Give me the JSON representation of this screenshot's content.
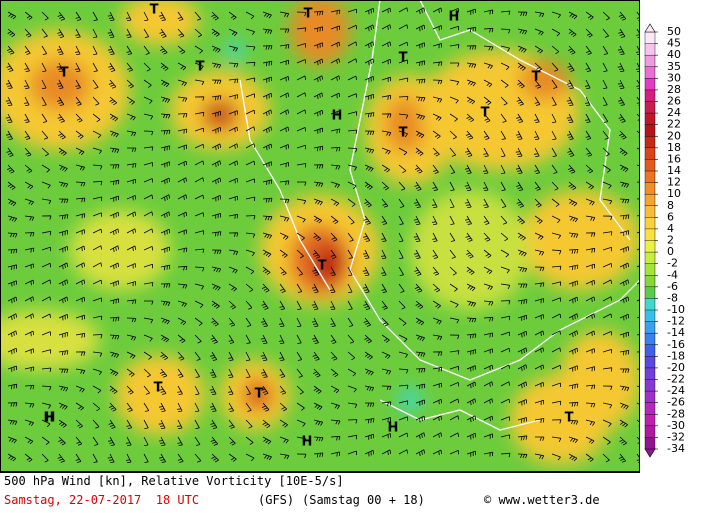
{
  "map": {
    "pressure_labels": [
      "T",
      "T",
      "H",
      "T",
      "T",
      "T",
      "H",
      "T",
      "T",
      "T",
      "T",
      "H",
      "T",
      "T",
      "H",
      "H",
      "H",
      "T"
    ],
    "colorbar": {
      "labels": [
        "50",
        "45",
        "40",
        "35",
        "30",
        "28",
        "26",
        "24",
        "22",
        "20",
        "18",
        "16",
        "14",
        "12",
        "10",
        "8",
        "6",
        "4",
        "2",
        "0",
        "-2",
        "-4",
        "-6",
        "-8",
        "-10",
        "-12",
        "-14",
        "-16",
        "-18",
        "-20",
        "-22",
        "-24",
        "-26",
        "-28",
        "-30",
        "-32",
        "-34"
      ],
      "colors": [
        "#fbe8f6",
        "#f6c3ec",
        "#f09ae0",
        "#ea6fd4",
        "#e23bc4",
        "#d51e7d",
        "#c81e4e",
        "#c0172a",
        "#b5141a",
        "#c62a16",
        "#d9441a",
        "#e45a1c",
        "#ec7420",
        "#f28d28",
        "#f5a530",
        "#f8bd38",
        "#fad03c",
        "#fbe140",
        "#eef044",
        "#c8ee3c",
        "#a4e438",
        "#84d838",
        "#5ccc48",
        "#40d8c8",
        "#38c0e8",
        "#3aa0f0",
        "#3c80f0",
        "#4060e8",
        "#5a48e0",
        "#7040d8",
        "#8838d0",
        "#a030c8",
        "#b428c0",
        "#c020b0",
        "#b01aa0",
        "#901490"
      ]
    },
    "footer": {
      "title": "500 hPa Wind [kn], Relative Vorticity [10E-5/s]",
      "date": "Samstag, 22-07-2017  18 UTC",
      "model": "(GFS)",
      "run": "(Samstag 00 + 18)",
      "credit": "© www.wetter3.de"
    }
  }
}
